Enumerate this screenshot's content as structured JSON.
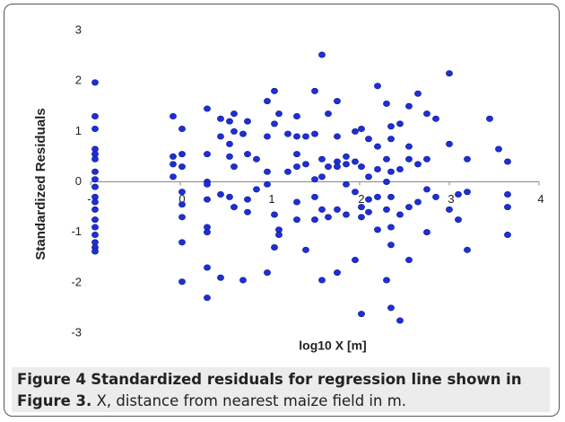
{
  "chart_data": {
    "type": "scatter",
    "y_label": "Standardized Residuals",
    "x_label": "log10 X [m]",
    "caption": {
      "label": "Figure 4",
      "title": "Standardized residuals for regression line shown in",
      "ref": "Figure 3.",
      "text": "X, distance from nearest maize field in m."
    },
    "color": "#1f2ed6",
    "xlim": [
      -1,
      4
    ],
    "xticks": [
      -1,
      0,
      1,
      2,
      3,
      4
    ],
    "ylim": [
      -3,
      3
    ],
    "yticks": [
      -3,
      -2,
      -1,
      0,
      1,
      2,
      3
    ],
    "grid": false,
    "x": [
      -0.95,
      -0.95,
      -0.95,
      -0.95,
      -0.95,
      -0.95,
      -0.95,
      -0.95,
      -0.95,
      -0.95,
      -0.95,
      -0.95,
      -0.95,
      -0.95,
      -0.95,
      -0.95,
      -0.95,
      -0.95,
      -0.08,
      -0.08,
      -0.08,
      -0.08,
      0.02,
      0.02,
      0.02,
      0.02,
      0.02,
      0.02,
      0.02,
      0.02,
      0.3,
      0.3,
      0.3,
      0.3,
      0.3,
      0.3,
      0.3,
      0.3,
      0.3,
      0.45,
      0.45,
      0.45,
      0.45,
      0.55,
      0.55,
      0.55,
      0.55,
      0.6,
      0.6,
      0.6,
      0.6,
      0.7,
      0.7,
      0.75,
      0.75,
      0.75,
      0.75,
      0.85,
      0.85,
      0.97,
      0.97,
      0.97,
      0.97,
      0.97,
      1.05,
      1.05,
      1.05,
      1.05,
      1.1,
      1.1,
      1.1,
      1.2,
      1.2,
      1.3,
      1.3,
      1.3,
      1.3,
      1.3,
      1.3,
      1.4,
      1.4,
      1.4,
      1.5,
      1.5,
      1.5,
      1.5,
      1.5,
      1.58,
      1.58,
      1.58,
      1.58,
      1.58,
      1.65,
      1.65,
      1.65,
      1.75,
      1.75,
      1.75,
      1.75,
      1.75,
      1.75,
      1.85,
      1.85,
      1.85,
      1.85,
      1.95,
      1.95,
      1.95,
      1.95,
      2.02,
      2.02,
      2.02,
      2.02,
      2.02,
      2.1,
      2.1,
      2.1,
      2.1,
      2.2,
      2.2,
      2.2,
      2.2,
      2.2,
      2.3,
      2.3,
      2.3,
      2.3,
      2.3,
      2.35,
      2.35,
      2.35,
      2.35,
      2.35,
      2.35,
      2.35,
      2.45,
      2.45,
      2.45,
      2.45,
      2.55,
      2.55,
      2.55,
      2.55,
      2.55,
      2.65,
      2.65,
      2.65,
      2.75,
      2.75,
      2.75,
      2.75,
      2.85,
      2.85,
      3.0,
      3.0,
      3.0,
      3.1,
      3.1,
      3.2,
      3.2,
      3.2,
      3.45,
      3.55,
      3.65,
      3.65,
      3.65,
      3.65
    ],
    "values": [
      1.97,
      1.3,
      1.05,
      0.65,
      0.55,
      0.45,
      0.2,
      0.05,
      -0.1,
      -0.3,
      -0.4,
      -0.55,
      -0.75,
      -0.9,
      -1.05,
      -1.2,
      -1.3,
      -1.38,
      1.3,
      0.5,
      0.35,
      0.1,
      1.05,
      0.55,
      0.3,
      -0.2,
      -0.45,
      -0.7,
      -1.2,
      -1.98,
      1.45,
      0.55,
      0.0,
      -0.05,
      -0.35,
      -0.9,
      -1.0,
      -1.7,
      -2.3,
      1.25,
      0.9,
      -0.25,
      -1.9,
      1.2,
      0.75,
      0.5,
      -0.3,
      1.35,
      1.0,
      0.3,
      -0.5,
      0.95,
      -1.95,
      1.2,
      0.55,
      -0.35,
      -0.6,
      0.45,
      -0.15,
      1.6,
      0.9,
      0.2,
      -0.05,
      -1.8,
      1.8,
      1.15,
      -0.65,
      -1.3,
      1.35,
      -0.95,
      -1.05,
      0.2,
      0.95,
      1.3,
      0.9,
      0.55,
      0.3,
      -0.4,
      -0.75,
      0.35,
      0.9,
      -1.35,
      1.8,
      0.95,
      0.05,
      -0.3,
      -0.75,
      2.52,
      0.45,
      0.1,
      -0.55,
      -1.95,
      1.35,
      0.3,
      -0.7,
      1.6,
      0.9,
      0.4,
      0.3,
      -0.55,
      -1.8,
      0.5,
      0.35,
      -0.05,
      -0.65,
      0.4,
      1.0,
      -0.2,
      -1.55,
      1.05,
      0.3,
      -0.5,
      -0.7,
      -2.62,
      0.85,
      0.1,
      -0.35,
      -0.6,
      1.9,
      0.7,
      0.25,
      -0.3,
      -0.95,
      1.55,
      0.45,
      0.0,
      -0.55,
      -1.95,
      1.1,
      0.85,
      0.2,
      -0.3,
      -0.9,
      -1.25,
      -2.5,
      1.15,
      0.25,
      -0.65,
      -2.75,
      1.5,
      0.7,
      0.45,
      -0.5,
      -1.55,
      1.75,
      0.35,
      -0.4,
      1.35,
      0.45,
      -0.15,
      -1.0,
      1.25,
      -0.3,
      2.15,
      0.75,
      -0.55,
      -0.25,
      -0.75,
      0.45,
      -0.2,
      -1.35,
      1.25,
      0.65,
      0.4,
      -0.25,
      -0.5,
      -1.05
    ]
  }
}
